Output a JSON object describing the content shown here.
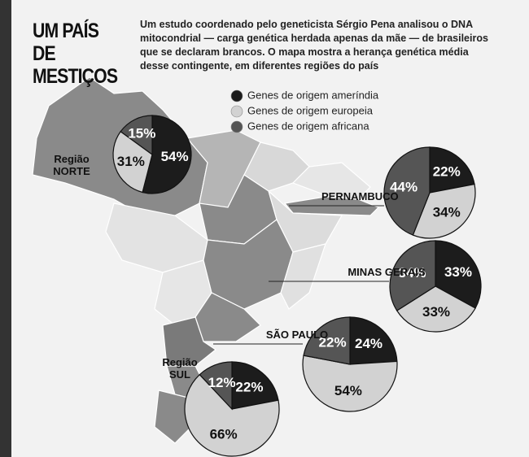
{
  "title": "UM PAÍS DE MESTIÇOS",
  "description": "Um estudo coordenado pelo geneticista Sérgio Pena analisou o DNA mitocondrial — carga genética herdada apenas da mãe — de brasileiros que se declaram brancos. O mapa mostra a herança genética média desse contingente, em diferentes regiões do país",
  "legend": [
    {
      "name": "Genes de origem ameríndia",
      "color": "#1c1c1c"
    },
    {
      "name": "Genes de origem europeia",
      "color": "#d2d2d2"
    },
    {
      "name": "Genes de origem africana",
      "color": "#555555"
    }
  ],
  "chart_data": [
    {
      "type": "pie",
      "title": "Região NORTE",
      "values": [
        54,
        31,
        15
      ],
      "value_labels": [
        "54%",
        "31%",
        "15%"
      ]
    },
    {
      "type": "pie",
      "title": "PERNAMBUCO",
      "values": [
        22,
        34,
        44
      ],
      "value_labels": [
        "22%",
        "34%",
        "44%"
      ]
    },
    {
      "type": "pie",
      "title": "MINAS GERAIS",
      "values": [
        33,
        33,
        34
      ],
      "value_labels": [
        "33%",
        "33%",
        "34%"
      ]
    },
    {
      "type": "pie",
      "title": "SÃO PAULO",
      "values": [
        24,
        54,
        22
      ],
      "value_labels": [
        "24%",
        "54%",
        "22%"
      ]
    },
    {
      "type": "pie",
      "title": "Região SUL",
      "values": [
        22,
        66,
        12
      ],
      "value_labels": [
        "22%",
        "66%",
        "12%"
      ]
    }
  ]
}
